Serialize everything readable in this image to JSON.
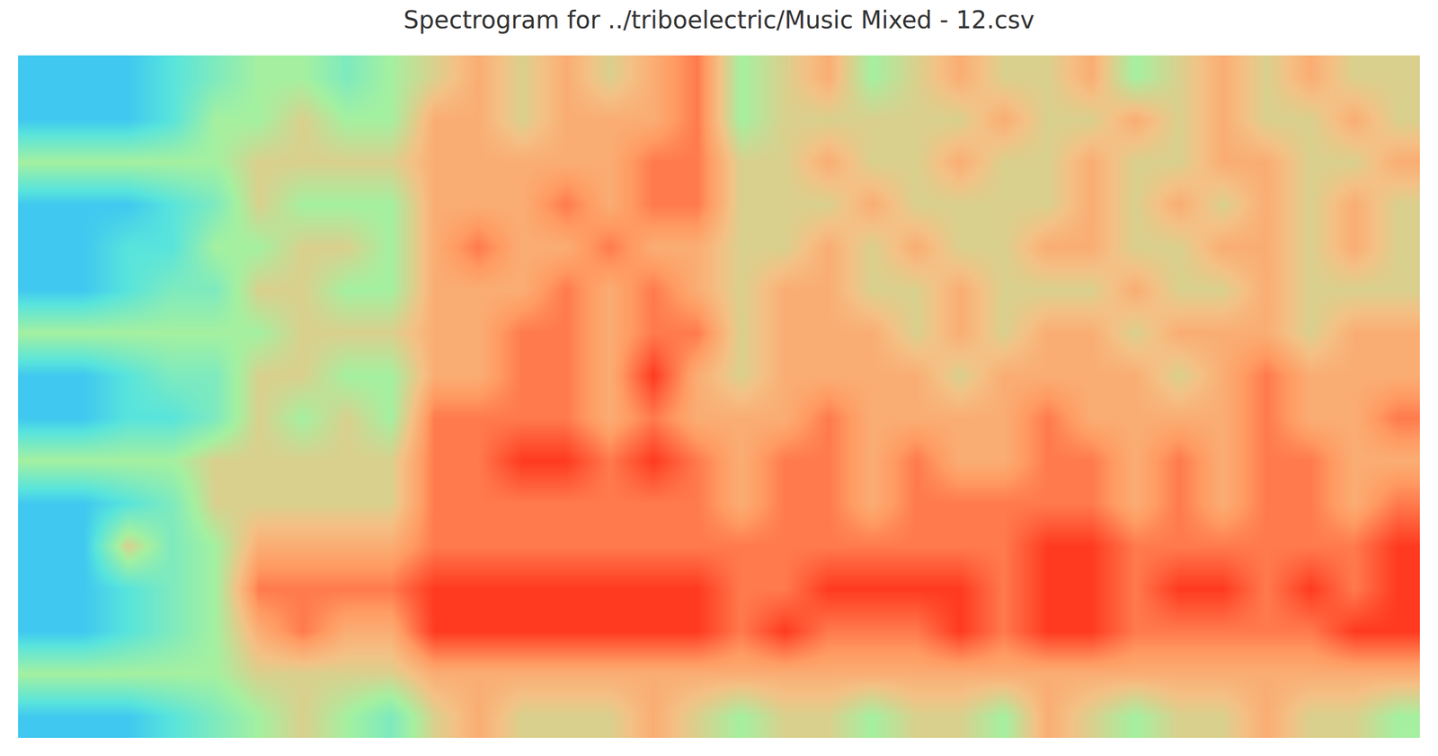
{
  "chart_data": {
    "type": "heatmap",
    "title": "Spectrogram for ../triboelectric/Music Mixed - 12.csv",
    "tick_labels": false,
    "zlim": [
      0,
      10
    ],
    "z": [
      [
        2,
        2,
        2,
        3,
        4,
        5,
        5,
        4,
        5,
        6,
        7,
        6,
        7,
        6,
        7,
        8,
        5,
        6,
        7,
        5,
        6,
        7,
        6,
        6,
        7,
        5,
        6,
        7,
        6,
        7,
        6,
        6
      ],
      [
        2,
        2,
        2,
        3,
        5,
        5,
        6,
        5,
        5,
        7,
        7,
        6,
        7,
        7,
        7,
        8,
        5,
        6,
        6,
        6,
        6,
        6,
        7,
        6,
        6,
        7,
        6,
        7,
        6,
        6,
        7,
        6
      ],
      [
        5,
        5,
        5,
        5,
        5,
        6,
        6,
        6,
        6,
        7,
        7,
        7,
        7,
        7,
        8,
        8,
        6,
        6,
        7,
        6,
        6,
        7,
        6,
        6,
        7,
        6,
        6,
        7,
        7,
        6,
        6,
        7
      ],
      [
        2,
        2,
        2,
        3,
        4,
        6,
        5,
        5,
        5,
        7,
        7,
        7,
        8,
        7,
        8,
        8,
        6,
        6,
        6,
        7,
        6,
        6,
        6,
        6,
        7,
        6,
        7,
        6,
        7,
        6,
        7,
        6
      ],
      [
        2,
        2,
        3,
        3,
        5,
        5,
        6,
        6,
        5,
        7,
        8,
        7,
        7,
        8,
        7,
        7,
        6,
        6,
        7,
        6,
        7,
        6,
        6,
        7,
        7,
        6,
        6,
        7,
        7,
        6,
        7,
        6
      ],
      [
        2,
        2,
        3,
        4,
        4,
        6,
        6,
        5,
        5,
        7,
        7,
        7,
        8,
        7,
        8,
        7,
        6,
        7,
        7,
        6,
        6,
        7,
        6,
        6,
        6,
        7,
        6,
        6,
        7,
        6,
        6,
        6
      ],
      [
        5,
        5,
        5,
        5,
        5,
        5,
        6,
        6,
        6,
        7,
        7,
        8,
        8,
        7,
        8,
        8,
        6,
        7,
        7,
        7,
        6,
        7,
        6,
        7,
        7,
        6,
        7,
        7,
        7,
        6,
        7,
        7
      ],
      [
        2,
        2,
        3,
        4,
        4,
        6,
        6,
        5,
        5,
        7,
        7,
        8,
        8,
        7,
        9,
        7,
        6,
        7,
        7,
        7,
        7,
        6,
        7,
        7,
        7,
        7,
        6,
        7,
        8,
        7,
        7,
        7
      ],
      [
        2,
        2,
        3,
        3,
        4,
        6,
        5,
        6,
        5,
        8,
        8,
        8,
        8,
        7,
        8,
        7,
        7,
        7,
        8,
        7,
        7,
        7,
        7,
        8,
        7,
        7,
        7,
        7,
        8,
        7,
        7,
        8
      ],
      [
        5,
        5,
        5,
        5,
        6,
        6,
        6,
        6,
        6,
        8,
        8,
        9,
        9,
        8,
        9,
        8,
        7,
        8,
        8,
        7,
        8,
        7,
        7,
        8,
        8,
        7,
        8,
        7,
        8,
        8,
        7,
        7
      ],
      [
        2,
        2,
        3,
        4,
        6,
        6,
        6,
        6,
        6,
        8,
        8,
        8,
        8,
        8,
        8,
        8,
        7,
        8,
        8,
        7,
        8,
        8,
        8,
        8,
        8,
        7,
        8,
        7,
        8,
        8,
        7,
        8
      ],
      [
        2,
        2,
        6,
        4,
        5,
        7,
        7,
        7,
        7,
        8,
        8,
        8,
        8,
        8,
        8,
        8,
        8,
        8,
        8,
        8,
        8,
        8,
        8,
        9,
        9,
        8,
        8,
        8,
        8,
        8,
        8,
        9
      ],
      [
        2,
        2,
        3,
        4,
        5,
        8,
        8,
        8,
        8,
        9,
        9,
        9,
        9,
        9,
        9,
        9,
        8,
        8,
        9,
        9,
        9,
        9,
        8,
        9,
        9,
        8,
        9,
        9,
        8,
        9,
        8,
        9
      ],
      [
        2,
        2,
        3,
        4,
        5,
        7,
        8,
        7,
        7,
        9,
        9,
        9,
        9,
        9,
        9,
        9,
        8,
        9,
        8,
        8,
        8,
        9,
        8,
        9,
        9,
        8,
        8,
        8,
        8,
        8,
        9,
        9
      ],
      [
        5,
        5,
        5,
        5,
        5,
        6,
        6,
        6,
        6,
        7,
        7,
        7,
        7,
        7,
        7,
        7,
        7,
        7,
        7,
        7,
        7,
        7,
        7,
        7,
        7,
        7,
        7,
        7,
        7,
        7,
        7,
        7
      ],
      [
        2,
        2,
        2,
        3,
        4,
        5,
        6,
        5,
        4,
        6,
        7,
        6,
        6,
        6,
        7,
        6,
        5,
        6,
        6,
        5,
        6,
        6,
        5,
        7,
        6,
        5,
        6,
        6,
        7,
        6,
        6,
        5
      ]
    ]
  }
}
